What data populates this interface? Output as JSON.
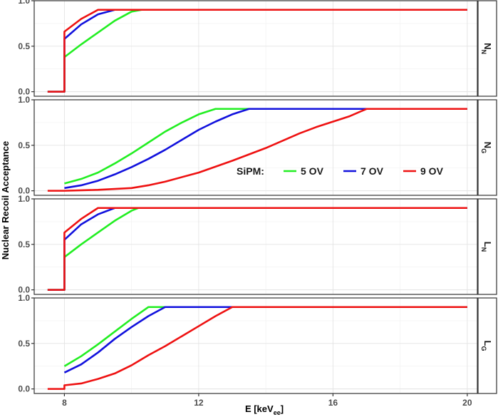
{
  "chart_data": {
    "type": "line",
    "ylabel": "Nuclear Recoil Acceptance",
    "xlabel": {
      "main": "E [keV",
      "sub": "ee",
      "close": "]"
    },
    "xlim": [
      7.1,
      20.3
    ],
    "ylim": [
      -0.05,
      1.0
    ],
    "x_ticks": [
      8,
      12,
      16,
      20
    ],
    "y_ticks": [
      0.0,
      0.5,
      1.0
    ],
    "y_tick_labels": [
      "0.0",
      "0.5",
      "1.0"
    ],
    "grid": true,
    "legend": {
      "title": "SiPM:",
      "entries": [
        "5 OV",
        "7 OV",
        "9 OV"
      ],
      "placement": "inside panel 2, lower-right"
    },
    "colors": {
      "5 OV": "#22ee22",
      "7 OV": "#1111dd",
      "9 OV": "#ee1111"
    },
    "panels": [
      {
        "strip": {
          "main": "N",
          "sub": "N"
        },
        "series": [
          {
            "name": "5 OV",
            "points": [
              [
                7.5,
                0
              ],
              [
                8,
                0
              ],
              [
                8,
                0.38
              ],
              [
                8.5,
                0.52
              ],
              [
                9,
                0.65
              ],
              [
                9.5,
                0.78
              ],
              [
                10,
                0.88
              ],
              [
                10.3,
                0.9
              ],
              [
                20,
                0.9
              ]
            ]
          },
          {
            "name": "7 OV",
            "points": [
              [
                7.5,
                0
              ],
              [
                8,
                0
              ],
              [
                8,
                0.58
              ],
              [
                8.5,
                0.74
              ],
              [
                9,
                0.85
              ],
              [
                9.5,
                0.9
              ],
              [
                20,
                0.9
              ]
            ]
          },
          {
            "name": "9 OV",
            "points": [
              [
                7.5,
                0
              ],
              [
                8,
                0
              ],
              [
                8,
                0.66
              ],
              [
                8.5,
                0.8
              ],
              [
                9,
                0.9
              ],
              [
                20,
                0.9
              ]
            ]
          }
        ]
      },
      {
        "strip": {
          "main": "N",
          "sub": "G"
        },
        "series": [
          {
            "name": "5 OV",
            "points": [
              [
                8,
                0.08
              ],
              [
                8.5,
                0.13
              ],
              [
                9,
                0.2
              ],
              [
                9.5,
                0.3
              ],
              [
                10,
                0.41
              ],
              [
                10.5,
                0.53
              ],
              [
                11,
                0.65
              ],
              [
                11.5,
                0.75
              ],
              [
                12,
                0.84
              ],
              [
                12.5,
                0.9
              ],
              [
                20,
                0.9
              ]
            ]
          },
          {
            "name": "7 OV",
            "points": [
              [
                8,
                0.03
              ],
              [
                8.5,
                0.06
              ],
              [
                9,
                0.11
              ],
              [
                9.5,
                0.18
              ],
              [
                10,
                0.26
              ],
              [
                10.5,
                0.35
              ],
              [
                11,
                0.45
              ],
              [
                11.5,
                0.56
              ],
              [
                12,
                0.67
              ],
              [
                12.5,
                0.76
              ],
              [
                13,
                0.84
              ],
              [
                13.5,
                0.9
              ],
              [
                20,
                0.9
              ]
            ]
          },
          {
            "name": "9 OV",
            "points": [
              [
                7.5,
                0
              ],
              [
                8,
                0
              ],
              [
                9,
                0.01
              ],
              [
                10,
                0.03
              ],
              [
                10.5,
                0.06
              ],
              [
                11,
                0.1
              ],
              [
                12,
                0.2
              ],
              [
                13,
                0.33
              ],
              [
                14,
                0.47
              ],
              [
                14.5,
                0.55
              ],
              [
                15,
                0.63
              ],
              [
                15.5,
                0.7
              ],
              [
                16,
                0.76
              ],
              [
                16.5,
                0.82
              ],
              [
                17,
                0.9
              ],
              [
                20,
                0.9
              ]
            ]
          }
        ]
      },
      {
        "strip": {
          "main": "L",
          "sub": "N"
        },
        "series": [
          {
            "name": "5 OV",
            "points": [
              [
                7.5,
                0
              ],
              [
                8,
                0
              ],
              [
                8,
                0.36
              ],
              [
                8.5,
                0.5
              ],
              [
                9,
                0.63
              ],
              [
                9.5,
                0.76
              ],
              [
                10,
                0.87
              ],
              [
                10.2,
                0.9
              ],
              [
                20,
                0.9
              ]
            ]
          },
          {
            "name": "7 OV",
            "points": [
              [
                7.5,
                0
              ],
              [
                8,
                0
              ],
              [
                8,
                0.55
              ],
              [
                8.5,
                0.72
              ],
              [
                9,
                0.83
              ],
              [
                9.5,
                0.9
              ],
              [
                20,
                0.9
              ]
            ]
          },
          {
            "name": "9 OV",
            "points": [
              [
                7.5,
                0
              ],
              [
                8,
                0
              ],
              [
                8,
                0.63
              ],
              [
                8.5,
                0.78
              ],
              [
                9,
                0.9
              ],
              [
                20,
                0.9
              ]
            ]
          }
        ]
      },
      {
        "strip": {
          "main": "L",
          "sub": "G"
        },
        "series": [
          {
            "name": "5 OV",
            "points": [
              [
                8,
                0.25
              ],
              [
                8.5,
                0.36
              ],
              [
                9,
                0.49
              ],
              [
                9.5,
                0.63
              ],
              [
                10,
                0.77
              ],
              [
                10.5,
                0.9
              ],
              [
                20,
                0.9
              ]
            ]
          },
          {
            "name": "7 OV",
            "points": [
              [
                8,
                0.18
              ],
              [
                8.5,
                0.27
              ],
              [
                9,
                0.4
              ],
              [
                9.5,
                0.55
              ],
              [
                10,
                0.68
              ],
              [
                10.5,
                0.8
              ],
              [
                11,
                0.9
              ],
              [
                20,
                0.9
              ]
            ]
          },
          {
            "name": "9 OV",
            "points": [
              [
                7.5,
                0
              ],
              [
                8,
                0
              ],
              [
                8,
                0.04
              ],
              [
                8.5,
                0.06
              ],
              [
                9,
                0.11
              ],
              [
                9.5,
                0.17
              ],
              [
                10,
                0.26
              ],
              [
                10.5,
                0.37
              ],
              [
                11,
                0.47
              ],
              [
                11.5,
                0.58
              ],
              [
                12,
                0.69
              ],
              [
                12.5,
                0.8
              ],
              [
                13,
                0.9
              ],
              [
                20,
                0.9
              ]
            ]
          }
        ]
      }
    ]
  }
}
